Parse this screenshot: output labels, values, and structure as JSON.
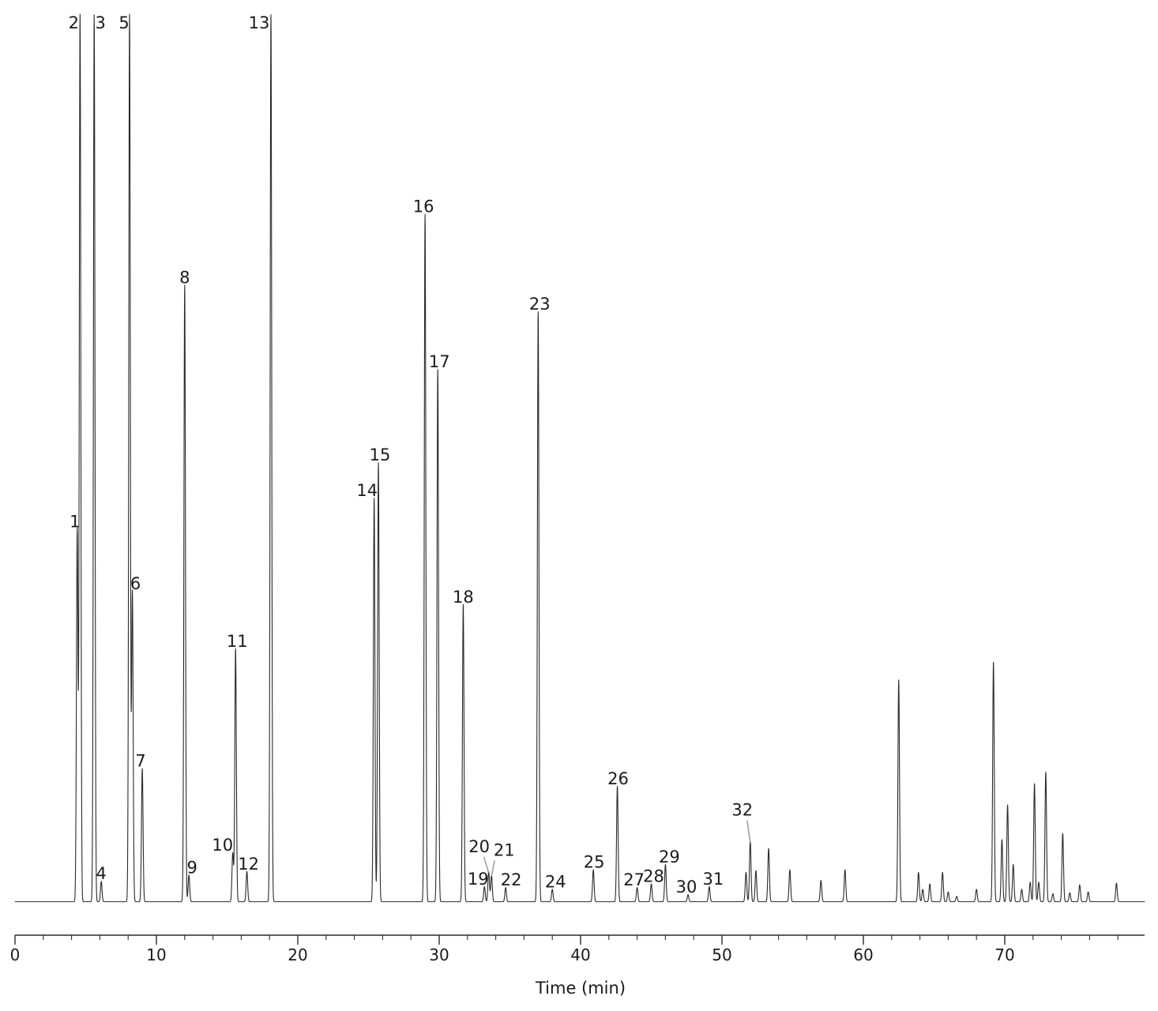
{
  "chart_data": {
    "type": "line",
    "title": "",
    "xlabel": "Time (min)",
    "ylabel": "",
    "xlim": [
      0,
      80
    ],
    "ylim": [
      0,
      100
    ],
    "grid": false,
    "x_ticks": [
      "0",
      "10",
      "20",
      "30",
      "40",
      "50",
      "60",
      "70"
    ],
    "x_tick_values": [
      0,
      10,
      20,
      30,
      40,
      50,
      60,
      70
    ],
    "baseline": 0.3,
    "labeled_peaks": [
      {
        "label": "1",
        "time": 4.4,
        "height": 42.0
      },
      {
        "label": "2",
        "time": 4.6,
        "height": 100
      },
      {
        "label": "3",
        "time": 5.6,
        "height": 100
      },
      {
        "label": "4",
        "time": 6.1,
        "height": 2.3
      },
      {
        "label": "5",
        "time": 8.1,
        "height": 100
      },
      {
        "label": "6",
        "time": 8.3,
        "height": 35.0
      },
      {
        "label": "7",
        "time": 9.0,
        "height": 15.0
      },
      {
        "label": "8",
        "time": 12.0,
        "height": 69.5
      },
      {
        "label": "9",
        "time": 12.3,
        "height": 3.0
      },
      {
        "label": "10",
        "time": 15.4,
        "height": 5.5
      },
      {
        "label": "11",
        "time": 15.6,
        "height": 28.5
      },
      {
        "label": "12",
        "time": 16.4,
        "height": 3.4
      },
      {
        "label": "13",
        "time": 18.1,
        "height": 100
      },
      {
        "label": "14",
        "time": 25.4,
        "height": 45.5
      },
      {
        "label": "15",
        "time": 25.7,
        "height": 49.5
      },
      {
        "label": "16",
        "time": 29.0,
        "height": 77.5
      },
      {
        "label": "17",
        "time": 29.9,
        "height": 60.0
      },
      {
        "label": "18",
        "time": 31.7,
        "height": 33.5
      },
      {
        "label": "19",
        "time": 33.2,
        "height": 1.7
      },
      {
        "label": "20",
        "time": 33.5,
        "height": 3.4
      },
      {
        "label": "21",
        "time": 33.7,
        "height": 3.0
      },
      {
        "label": "22",
        "time": 34.7,
        "height": 1.6
      },
      {
        "label": "23",
        "time": 37.0,
        "height": 66.5
      },
      {
        "label": "24",
        "time": 38.0,
        "height": 1.4
      },
      {
        "label": "25",
        "time": 40.9,
        "height": 3.6
      },
      {
        "label": "26",
        "time": 42.6,
        "height": 13.0
      },
      {
        "label": "27",
        "time": 44.0,
        "height": 1.6
      },
      {
        "label": "28",
        "time": 45.0,
        "height": 2.0
      },
      {
        "label": "29",
        "time": 46.0,
        "height": 4.2
      },
      {
        "label": "30",
        "time": 47.6,
        "height": 0.8
      },
      {
        "label": "31",
        "time": 49.1,
        "height": 1.7
      },
      {
        "label": "32",
        "time": 52.0,
        "height": 6.8
      }
    ],
    "unlabeled_peaks": [
      {
        "time": 51.7,
        "height": 3.3
      },
      {
        "time": 52.4,
        "height": 3.5
      },
      {
        "time": 53.3,
        "height": 6.0
      },
      {
        "time": 54.8,
        "height": 3.6
      },
      {
        "time": 57.0,
        "height": 2.4
      },
      {
        "time": 58.7,
        "height": 3.6
      },
      {
        "time": 62.5,
        "height": 25.0
      },
      {
        "time": 63.9,
        "height": 3.3
      },
      {
        "time": 64.2,
        "height": 1.4
      },
      {
        "time": 64.7,
        "height": 2.0
      },
      {
        "time": 65.6,
        "height": 3.3
      },
      {
        "time": 66.0,
        "height": 1.1
      },
      {
        "time": 66.6,
        "height": 0.6
      },
      {
        "time": 68.0,
        "height": 1.4
      },
      {
        "time": 69.2,
        "height": 27.0
      },
      {
        "time": 69.8,
        "height": 7.0
      },
      {
        "time": 70.2,
        "height": 10.9
      },
      {
        "time": 70.6,
        "height": 4.2
      },
      {
        "time": 71.2,
        "height": 1.4
      },
      {
        "time": 71.8,
        "height": 2.2
      },
      {
        "time": 72.1,
        "height": 13.3
      },
      {
        "time": 72.4,
        "height": 2.2
      },
      {
        "time": 72.9,
        "height": 14.6
      },
      {
        "time": 73.4,
        "height": 0.9
      },
      {
        "time": 74.1,
        "height": 7.7
      },
      {
        "time": 74.6,
        "height": 1.0
      },
      {
        "time": 75.3,
        "height": 1.9
      },
      {
        "time": 75.9,
        "height": 1.1
      },
      {
        "time": 77.9,
        "height": 2.1
      }
    ]
  }
}
